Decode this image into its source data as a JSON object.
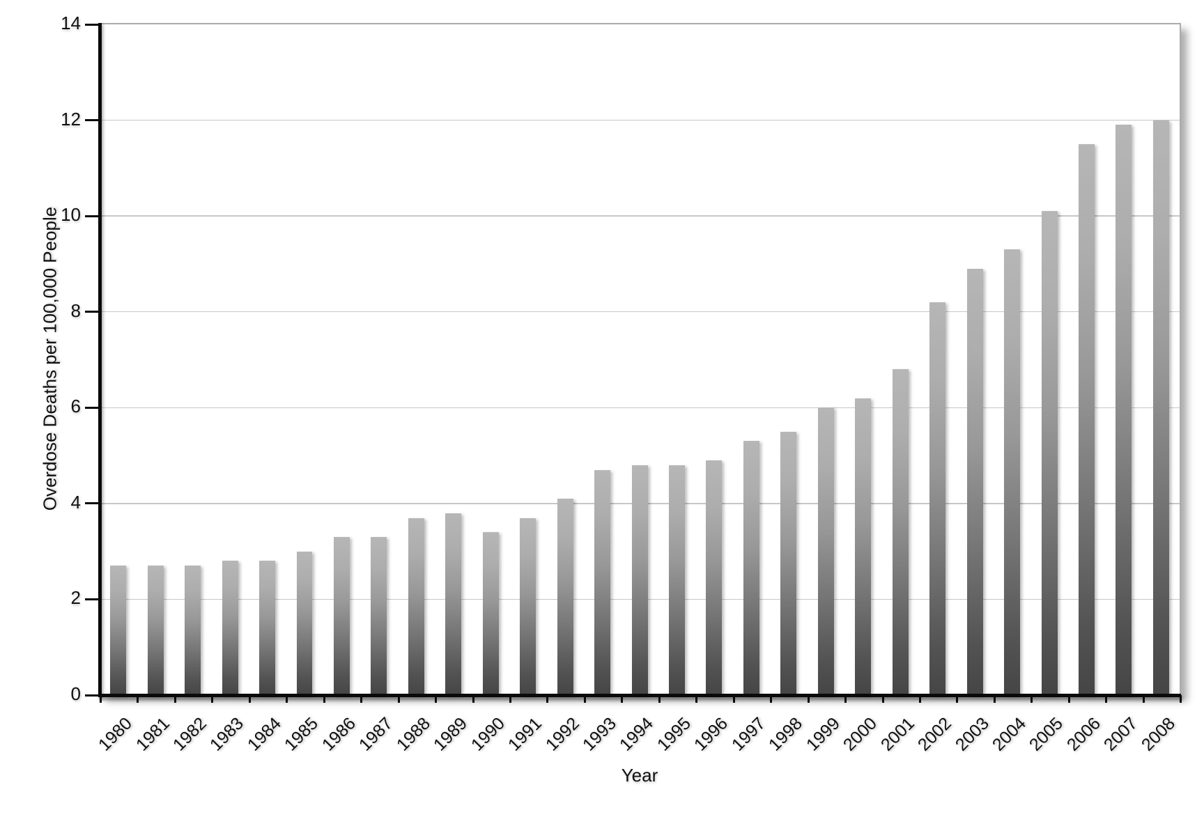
{
  "chart_data": {
    "type": "bar",
    "title": "",
    "xlabel": "Year",
    "ylabel": "Overdose Deaths per 100,000 People",
    "categories": [
      "1980",
      "1981",
      "1982",
      "1983",
      "1984",
      "1985",
      "1986",
      "1987",
      "1988",
      "1989",
      "1990",
      "1991",
      "1992",
      "1993",
      "1994",
      "1995",
      "1996",
      "1997",
      "1998",
      "1999",
      "2000",
      "2001",
      "2002",
      "2003",
      "2004",
      "2005",
      "2006",
      "2007",
      "2008"
    ],
    "values": [
      2.7,
      2.7,
      2.7,
      2.8,
      2.8,
      3.0,
      3.3,
      3.3,
      3.7,
      3.8,
      3.4,
      3.7,
      4.1,
      4.7,
      4.8,
      4.8,
      4.9,
      5.3,
      5.5,
      6.0,
      6.2,
      6.8,
      8.2,
      8.9,
      9.3,
      10.1,
      11.5,
      11.9,
      12.0
    ],
    "ylim": [
      0,
      14
    ],
    "yticks": [
      0,
      2,
      4,
      6,
      8,
      10,
      12,
      14
    ],
    "grid": "horizontal",
    "legend": "none",
    "x_label_rotation_deg": -45,
    "colors": {
      "background": "#ffffff",
      "bar_gradient_top": "#b6b6b6",
      "bar_gradient_bottom": "#454545",
      "axis_line": "#0a0a0a",
      "gridline": "#c7c7c7",
      "plot_border": "#ababab",
      "text": "#111111"
    }
  }
}
